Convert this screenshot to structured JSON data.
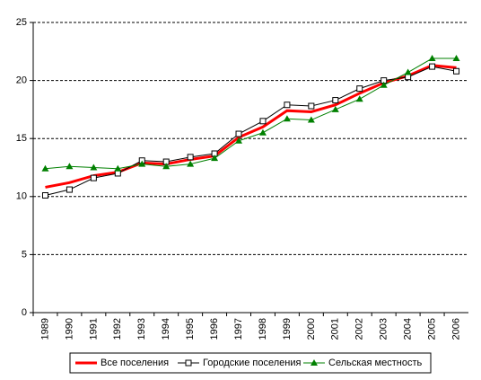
{
  "chart_data": {
    "type": "line",
    "categories": [
      "1989",
      "1990",
      "1991",
      "1992",
      "1993",
      "1994",
      "1995",
      "1996",
      "1997",
      "1998",
      "1999",
      "2000",
      "2001",
      "2002",
      "2003",
      "2004",
      "2005",
      "2006"
    ],
    "series": [
      {
        "name": "Все поселения",
        "color": "#ff0000",
        "values": [
          10.8,
          11.2,
          11.8,
          12.1,
          12.9,
          12.8,
          13.2,
          13.5,
          15.1,
          16.0,
          17.4,
          17.3,
          17.9,
          18.9,
          19.8,
          20.4,
          21.3,
          21.1
        ]
      },
      {
        "name": "Городские поселения",
        "color": "#000000",
        "values": [
          10.1,
          10.6,
          11.6,
          12.0,
          13.1,
          13.0,
          13.4,
          13.7,
          15.4,
          16.5,
          17.9,
          17.8,
          18.3,
          19.3,
          20.0,
          20.3,
          21.2,
          20.8
        ]
      },
      {
        "name": "Сельская местность",
        "color": "#008000",
        "values": [
          12.4,
          12.6,
          12.5,
          12.4,
          12.8,
          12.6,
          12.8,
          13.3,
          14.8,
          15.5,
          16.7,
          16.6,
          17.5,
          18.4,
          19.6,
          20.7,
          21.9,
          21.9
        ]
      }
    ],
    "ylim": [
      0,
      25
    ],
    "yticks": [
      0,
      5,
      10,
      15,
      20,
      25
    ],
    "grid": true,
    "legend": "bottom"
  }
}
